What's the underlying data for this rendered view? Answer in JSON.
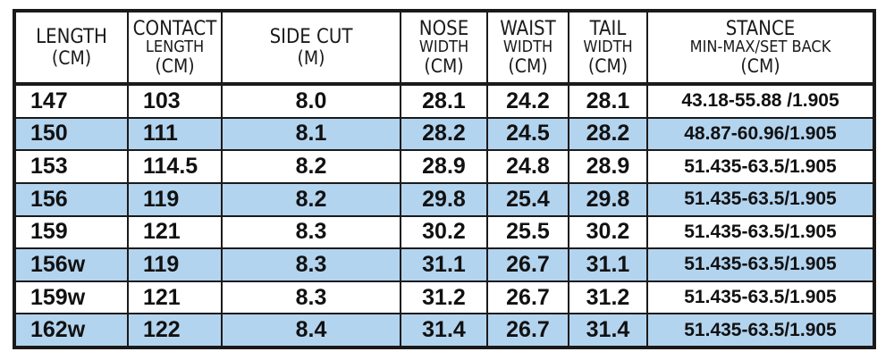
{
  "columns": [
    {
      "line1": "LENGTH",
      "line2": "",
      "unit": "(cm)"
    },
    {
      "line1": "CONTACT",
      "line2": "LENGTH",
      "unit": "(cm)"
    },
    {
      "line1": "SIDE CUT",
      "line2": "",
      "unit": "(m)"
    },
    {
      "line1": "NOSE",
      "line2": "WIDTH",
      "unit": "(cm)"
    },
    {
      "line1": "WAIST",
      "line2": "WIDTH",
      "unit": "(cm)"
    },
    {
      "line1": "TAIL",
      "line2": "WIDTH",
      "unit": "(cm)"
    },
    {
      "line1": "STANCE",
      "line2": "MIN-MAX/SET BACK",
      "unit": "(cm)"
    }
  ],
  "rows": [
    [
      "147",
      "103",
      "8.0",
      "28.1",
      "24.2",
      "28.1",
      "43.18-55.88 /1.905"
    ],
    [
      "150",
      "111",
      "8.1",
      "28.2",
      "24.5",
      "28.2",
      "48.87-60.96/1.905"
    ],
    [
      "153",
      "114.5",
      "8.2",
      "28.9",
      "24.8",
      "28.9",
      "51.435-63.5/1.905"
    ],
    [
      "156",
      "119",
      "8.2",
      "29.8",
      "25.4",
      "29.8",
      "51.435-63.5/1.905"
    ],
    [
      "159",
      "121",
      "8.3",
      "30.2",
      "25.5",
      "30.2",
      "51.435-63.5/1.905"
    ],
    [
      "156w",
      "119",
      "8.3",
      "31.1",
      "26.7",
      "31.1",
      "51.435-63.5/1.905"
    ],
    [
      "159w",
      "121",
      "8.3",
      "31.2",
      "26.7",
      "31.2",
      "51.435-63.5/1.905"
    ],
    [
      "162w",
      "122",
      "8.4",
      "31.4",
      "26.7",
      "31.4",
      "51.435-63.5/1.905"
    ]
  ],
  "colors": {
    "stripe": "#b3d4ef",
    "border": "#1a1a1a",
    "text": "#111111"
  }
}
